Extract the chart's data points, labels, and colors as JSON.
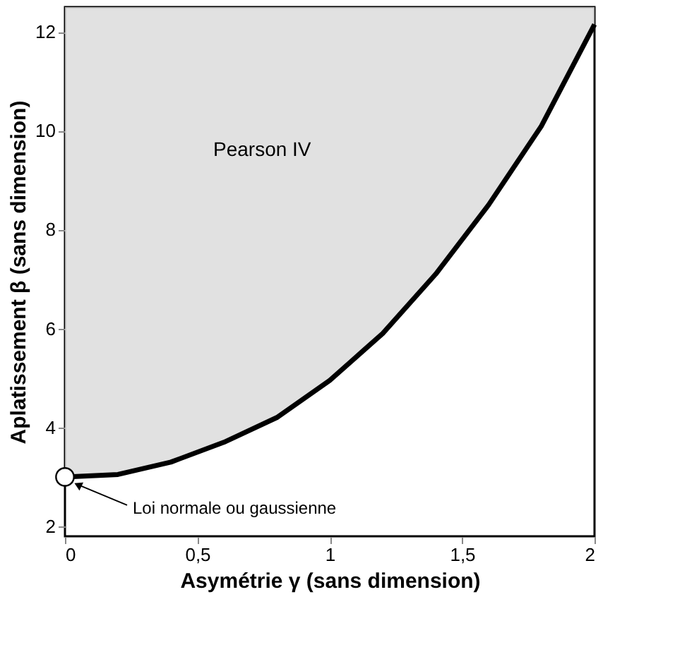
{
  "chart_data": {
    "type": "line",
    "xlabel": "Asymétrie  γ  (sans dimension)",
    "ylabel": "Aplatissement  β  (sans dimension)",
    "x": [
      0,
      0.2,
      0.4,
      0.6,
      0.8,
      1.0,
      1.2,
      1.4,
      1.6,
      1.8,
      2.0
    ],
    "series": [
      {
        "color": "#000000",
        "values": [
          3,
          3.05,
          3.3,
          3.7,
          4.2,
          4.95,
          5.9,
          7.1,
          8.5,
          10.1,
          12.15
        ],
        "upper": [
          12.5,
          12.5,
          12.5,
          12.5,
          12.5,
          12.5,
          12.5,
          12.5,
          12.5,
          12.5,
          12.5
        ],
        "lower": [
          3,
          3.05,
          3.3,
          3.7,
          4.2,
          4.95,
          5.9,
          7.1,
          8.5,
          10.1,
          12.15
        ]
      },
      {
        "type": "scatter",
        "color": "#000000",
        "x": [
          0
        ],
        "values": [
          3
        ],
        "marker": "circle"
      }
    ],
    "xlim": [
      0,
      2
    ],
    "ylim": [
      1.8,
      12.5
    ],
    "xticks": [
      {
        "value": 0,
        "label": "0"
      },
      {
        "value": 0.5,
        "label": "0,5"
      },
      {
        "value": 1,
        "label": "1"
      },
      {
        "value": 1.5,
        "label": "1,5"
      },
      {
        "value": 2,
        "label": "2"
      }
    ],
    "yticks": [
      2,
      4,
      6,
      8,
      10,
      12
    ],
    "grid": false,
    "line_style": "solid",
    "annotations": [
      "Pearson IV",
      {
        "text": "Loi normale ou gaussienne",
        "x": 0,
        "y": 3
      }
    ]
  }
}
